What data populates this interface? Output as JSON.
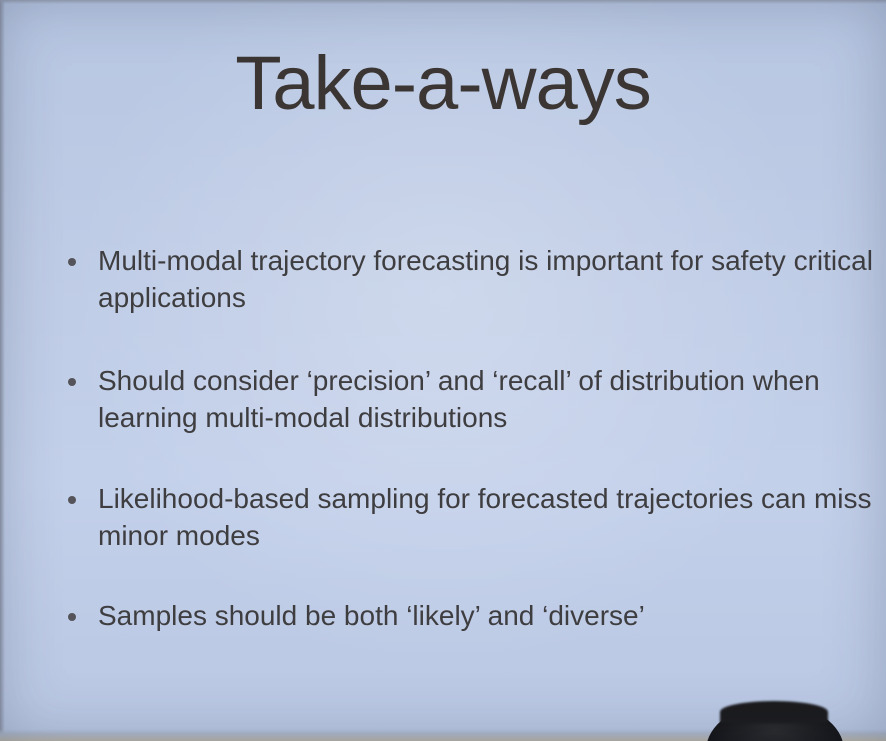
{
  "slide": {
    "title": "Take-a-ways",
    "bullets": [
      {
        "text": "Multi-modal trajectory forecasting is important for safety critical applications"
      },
      {
        "text": "Should consider ‘precision’ and ‘recall’ of distribution when learning multi-modal distributions"
      },
      {
        "text": "Likelihood-based sampling for forecasted trajectories can miss minor modes"
      },
      {
        "text": "Samples should be both ‘likely’ and ‘diverse’"
      }
    ]
  },
  "colors": {
    "background": "#bfcce6",
    "title_text": "#3b3634",
    "body_text": "#3e3d40"
  }
}
